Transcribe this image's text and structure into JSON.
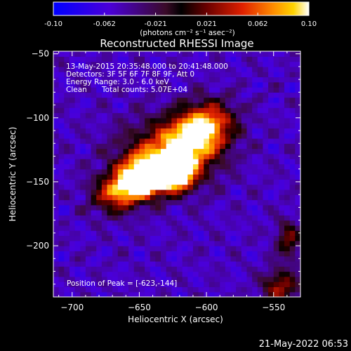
{
  "colorbar": {
    "min": -0.1,
    "max": 0.1,
    "tick_labels": [
      "-0.10",
      "-0.062",
      "-0.021",
      "0.021",
      "0.062",
      "0.10"
    ],
    "unit_label": "(photons cm⁻² s⁻¹ asec⁻²)"
  },
  "chart_data": {
    "type": "heatmap",
    "title": "Reconstructed RHESSI Image",
    "xlabel": "Heliocentric X (arcsec)",
    "ylabel": "Heliocentric Y (arcsec)",
    "xlim": [
      -714,
      -530
    ],
    "ylim": [
      -240,
      -48
    ],
    "x_ticks": [
      -700,
      -650,
      -600,
      -550
    ],
    "y_ticks": [
      -200,
      -150,
      -100,
      -50
    ],
    "x_tick_labels": [
      "−700",
      "−650",
      "−600",
      "−550"
    ],
    "y_tick_labels": [
      "−200",
      "−150",
      "−100",
      "−50"
    ],
    "info_lines": [
      "13-May-2015 20:35:48.000 to 20:41:48.000",
      "Detectors: 3F 5F 6F 7F 8F 9F, Att 0",
      "Energy Range: 3.0 - 6.0 keV"
    ],
    "clean_label": "Clean",
    "total_counts_label": "Total counts: 5.07E+04",
    "peak_label": "Position of Peak = [-623,-144]",
    "peak": [
      -623,
      -144
    ],
    "sources": [
      {
        "x": -623,
        "y": -144,
        "sx": 9,
        "sy": 8,
        "amp": 0.1
      },
      {
        "x": -650,
        "y": -150,
        "sx": 12,
        "sy": 9,
        "amp": 0.095
      },
      {
        "x": -638,
        "y": -140,
        "sx": 15,
        "sy": 10,
        "amp": 0.07
      },
      {
        "x": -612,
        "y": -118,
        "sx": 15,
        "sy": 13,
        "amp": 0.06
      },
      {
        "x": -598,
        "y": -103,
        "sx": 14,
        "sy": 12,
        "amp": 0.048
      },
      {
        "x": -668,
        "y": -160,
        "sx": 12,
        "sy": 10,
        "amp": 0.045
      },
      {
        "x": -630,
        "y": -128,
        "sx": 24,
        "sy": 18,
        "amp": 0.03
      },
      {
        "x": -545,
        "y": -232,
        "sx": 9,
        "sy": 9,
        "amp": 0.032
      },
      {
        "x": -539,
        "y": -195,
        "sx": 6,
        "sy": 10,
        "amp": 0.018
      }
    ],
    "background_level": -0.05,
    "timestamp": "21-May-2022 06:53"
  }
}
